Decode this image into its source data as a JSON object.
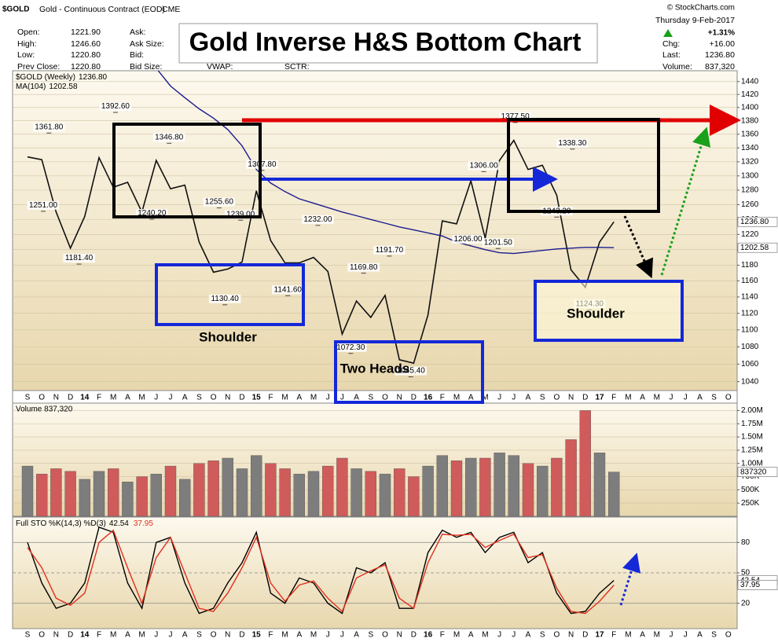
{
  "header": {
    "symbol": "$GOLD",
    "description": "Gold - Continuous Contract (EOD)",
    "exchange": "CME",
    "credit": "© StockCharts.com",
    "fields": [
      [
        "Open:",
        "1221.90"
      ],
      [
        "High:",
        "1246.60"
      ],
      [
        "Low:",
        "1220.80"
      ],
      [
        "Prev Close:",
        "1220.80"
      ]
    ],
    "quote_fields": [
      "Ask:",
      "Ask Size:",
      "Bid:",
      "Bid Size:"
    ],
    "other_fields": [
      "VWAP:",
      "SCTR:"
    ],
    "date": "Thursday  9-Feb-2017",
    "change_pct": "+1.31%",
    "right_fields": [
      [
        "Chg:",
        "+16.00"
      ],
      [
        "Last:",
        "1236.80"
      ],
      [
        "Volume:",
        "837,320"
      ]
    ]
  },
  "chart_data": [
    {
      "type": "line",
      "title": "Gold Inverse H&S Bottom Chart",
      "log_scale": true,
      "grid": true,
      "categories": [
        "S",
        "O",
        "N",
        "D",
        "14",
        "F",
        "M",
        "A",
        "M",
        "J",
        "J",
        "A",
        "S",
        "O",
        "N",
        "D",
        "15",
        "F",
        "M",
        "A",
        "M",
        "J",
        "J",
        "A",
        "S",
        "O",
        "N",
        "D",
        "16",
        "F",
        "M",
        "A",
        "M",
        "J",
        "J",
        "A",
        "S",
        "O",
        "N",
        "D",
        "17",
        "F",
        "M",
        "A",
        "M",
        "J",
        "J",
        "A",
        "S",
        "O"
      ],
      "series": [
        {
          "name": "$GOLD (Weekly)",
          "last_label": "1236.80",
          "color": "#111111",
          "values": [
            1327,
            1323,
            1250,
            1202,
            1244,
            1326,
            1284,
            1291,
            1250,
            1322,
            1282,
            1287,
            1210,
            1171,
            1175,
            1184,
            1279,
            1212,
            1183,
            1183,
            1190,
            1172,
            1095,
            1135,
            1115,
            1142,
            1065,
            1061,
            1118,
            1238,
            1234,
            1293,
            1215,
            1322,
            1351,
            1309,
            1315,
            1273,
            1174,
            1152,
            1210,
            1236.8,
            null,
            null,
            null,
            null,
            null,
            null,
            null,
            null
          ]
        },
        {
          "name": "MA(104)",
          "last_label": "1202.58",
          "color": "#1c1c8f",
          "values": [
            null,
            null,
            null,
            null,
            null,
            null,
            null,
            null,
            null,
            1461,
            1433,
            1415,
            1398,
            1384,
            1367,
            1343,
            1309,
            1290,
            1278,
            1268,
            1262,
            1256,
            1250,
            1245,
            1240,
            1235,
            1230,
            1226,
            1222,
            1218,
            1210,
            1205,
            1200,
            1196,
            1195,
            1197,
            1199,
            1201,
            1202,
            1203,
            1203,
            1202.58,
            null,
            null,
            null,
            null,
            null,
            null,
            null,
            null
          ]
        }
      ],
      "value_annotations": [
        {
          "x": 6.15,
          "value": 1392.6,
          "label": "1392.60"
        },
        {
          "x": 1.5,
          "value": 1361.8,
          "label": "1361.80"
        },
        {
          "x": 1.1,
          "value": 1251.0,
          "label": "1251.00"
        },
        {
          "x": 3.6,
          "value": 1181.4,
          "label": "1181.40"
        },
        {
          "x": 9.9,
          "value": 1346.8,
          "label": "1346.80"
        },
        {
          "x": 8.7,
          "value": 1240.2,
          "label": "1240.20"
        },
        {
          "x": 13.4,
          "value": 1255.6,
          "label": "1255.60"
        },
        {
          "x": 14.9,
          "value": 1239.0,
          "label": "1239.00"
        },
        {
          "x": 13.8,
          "value": 1130.4,
          "label": "1130.40"
        },
        {
          "x": 16.4,
          "value": 1307.8,
          "label": "1307.80"
        },
        {
          "x": 20.3,
          "value": 1232.0,
          "label": "1232.00"
        },
        {
          "x": 18.2,
          "value": 1141.6,
          "label": "1141.60"
        },
        {
          "x": 23.5,
          "value": 1169.8,
          "label": "1169.80"
        },
        {
          "x": 25.3,
          "value": 1191.7,
          "label": "1191.70"
        },
        {
          "x": 22.6,
          "value": 1072.3,
          "label": "1072.30"
        },
        {
          "x": 26.8,
          "value": 1045.4,
          "label": "1045.40"
        },
        {
          "x": 31.9,
          "value": 1306.0,
          "label": "1306.00"
        },
        {
          "x": 30.8,
          "value": 1206.0,
          "label": "1206.00"
        },
        {
          "x": 32.9,
          "value": 1201.5,
          "label": "1201.50"
        },
        {
          "x": 34.1,
          "value": 1377.5,
          "label": "1377.50"
        },
        {
          "x": 38.1,
          "value": 1338.3,
          "label": "1338.30"
        },
        {
          "x": 37.0,
          "value": 1243.2,
          "label": "1243.20"
        },
        {
          "x": 39.3,
          "value": 1124.3,
          "label": "1124.30"
        }
      ],
      "text_annotations": [
        "Shoulder",
        "Two Heads",
        "Shoulder"
      ],
      "ylim": [
        1030,
        1457
      ],
      "yticks": [
        1040,
        1060,
        1080,
        1100,
        1120,
        1140,
        1160,
        1180,
        1200,
        1220,
        1240,
        1260,
        1280,
        1300,
        1320,
        1340,
        1360,
        1380,
        1400,
        1420,
        1440
      ]
    },
    {
      "type": "bar",
      "grid": true,
      "up_color": "#7d7d7d",
      "down_color": "#cf5b5b",
      "series": [
        {
          "name": "Volume 837,320",
          "values": [
            950000,
            800000,
            900000,
            850000,
            700000,
            850000,
            900000,
            650000,
            750000,
            800000,
            950000,
            700000,
            1000000,
            1050000,
            1100000,
            900000,
            1150000,
            1000000,
            900000,
            800000,
            850000,
            950000,
            1100000,
            900000,
            850000,
            800000,
            900000,
            750000,
            950000,
            1150000,
            1050000,
            1100000,
            1100000,
            1200000,
            1150000,
            1000000,
            950000,
            1100000,
            1450000,
            2000000,
            1200000,
            837320,
            null,
            null,
            null,
            null,
            null,
            null,
            null,
            null
          ]
        }
      ],
      "ylim": [
        0,
        2140000
      ],
      "yticks": [
        {
          "value": 250000,
          "label": "250K"
        },
        {
          "value": 500000,
          "label": "500K"
        },
        {
          "value": 750000,
          "label": "750K"
        },
        {
          "value": 1000000,
          "label": "1.00M"
        },
        {
          "value": 1250000,
          "label": "1.25M"
        },
        {
          "value": 1500000,
          "label": "1.50M"
        },
        {
          "value": 1750000,
          "label": "1.75M"
        },
        {
          "value": 2000000,
          "label": "2.00M"
        }
      ]
    },
    {
      "type": "line",
      "title": "Full STO %K(14,3) %D(3)",
      "grid": true,
      "series": [
        {
          "last_label": "42.54",
          "color": "#000000",
          "values": [
            80,
            40,
            15,
            20,
            40,
            95,
            90,
            40,
            15,
            80,
            85,
            40,
            10,
            15,
            40,
            60,
            90,
            30,
            20,
            45,
            40,
            20,
            10,
            55,
            50,
            60,
            15,
            15,
            70,
            92,
            85,
            90,
            70,
            85,
            90,
            60,
            70,
            30,
            10,
            12,
            30,
            42.54,
            null,
            null,
            null,
            null,
            null,
            null,
            null,
            null
          ]
        },
        {
          "last_label": "37.95",
          "color": "#e0301e",
          "values": [
            75,
            55,
            25,
            18,
            30,
            80,
            92,
            55,
            20,
            65,
            85,
            50,
            15,
            12,
            30,
            55,
            85,
            40,
            22,
            38,
            42,
            25,
            12,
            45,
            52,
            58,
            25,
            15,
            60,
            88,
            87,
            88,
            75,
            82,
            88,
            65,
            68,
            35,
            12,
            10,
            22,
            37.95,
            null,
            null,
            null,
            null,
            null,
            null,
            null,
            null
          ]
        }
      ],
      "ylim": [
        -5,
        105
      ],
      "yticks": [
        20,
        50,
        80
      ]
    }
  ]
}
